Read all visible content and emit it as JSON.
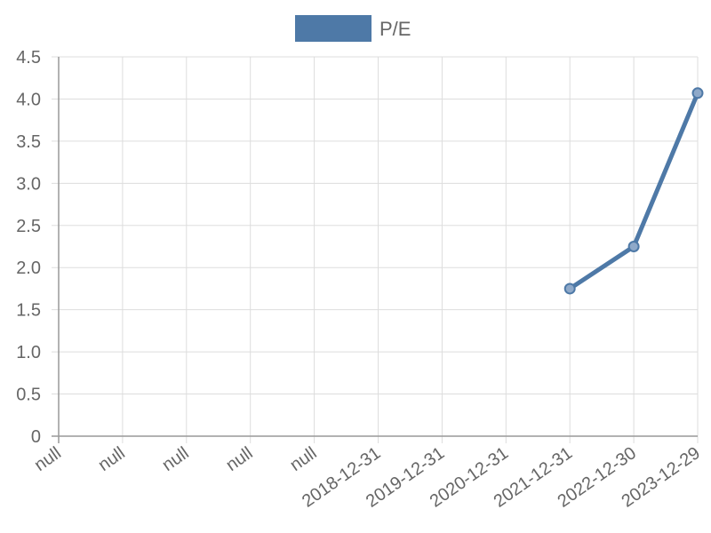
{
  "chart_data": {
    "type": "line",
    "legend_position": "top-center",
    "grid": true,
    "categories": [
      "null",
      "null",
      "null",
      "null",
      "null",
      "2018-12-31",
      "2019-12-31",
      "2020-12-31",
      "2021-12-31",
      "2022-12-30",
      "2023-12-29"
    ],
    "y_ticks": [
      "0",
      "0.5",
      "1.0",
      "1.5",
      "2.0",
      "2.5",
      "3.0",
      "3.5",
      "4.0",
      "4.5"
    ],
    "ylim": [
      0,
      4.5
    ],
    "series": [
      {
        "name": "P/E",
        "color": "#4e79a7",
        "values": [
          null,
          null,
          null,
          null,
          null,
          null,
          null,
          null,
          1.75,
          2.25,
          4.07
        ]
      }
    ]
  }
}
